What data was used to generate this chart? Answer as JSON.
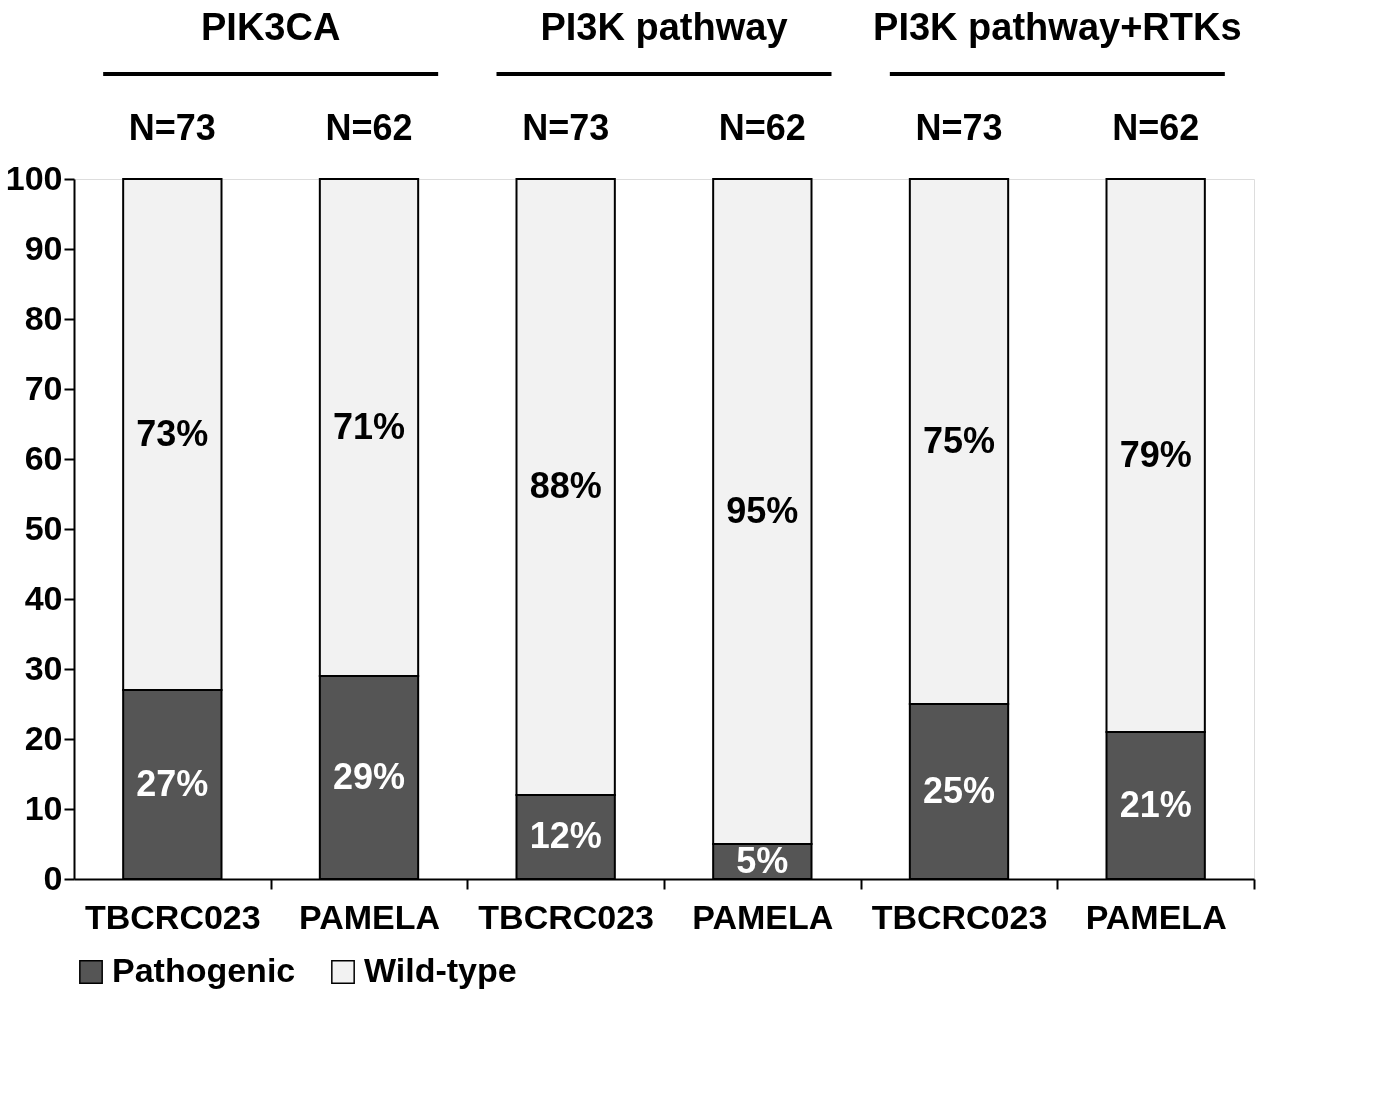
{
  "chart_data": {
    "type": "bar",
    "stacked": true,
    "categories": [
      "TBCRC023",
      "PAMELA",
      "TBCRC023",
      "PAMELA",
      "TBCRC023",
      "PAMELA"
    ],
    "series": [
      {
        "name": "Pathogenic",
        "color": "#555555",
        "values": [
          27,
          29,
          12,
          5,
          25,
          21
        ],
        "value_labels": [
          "27%",
          "29%",
          "12%",
          "5%",
          "25%",
          "21%"
        ]
      },
      {
        "name": "Wild-type",
        "color": "#f2f2f2",
        "values": [
          73,
          71,
          88,
          95,
          75,
          79
        ],
        "value_labels": [
          "73%",
          "71%",
          "88%",
          "95%",
          "75%",
          "79%"
        ]
      }
    ],
    "annotations": [
      "PIK3CA",
      "PI3K pathway",
      "PI3K pathway+RTKs",
      "N=73",
      "N=62",
      "N=73",
      "N=62",
      "N=73",
      "N=62"
    ],
    "ylim": [
      0,
      100
    ],
    "yticks": [
      0,
      10,
      20,
      30,
      40,
      50,
      60,
      70,
      80,
      90,
      100
    ],
    "grid": false,
    "legend": "bottom"
  }
}
